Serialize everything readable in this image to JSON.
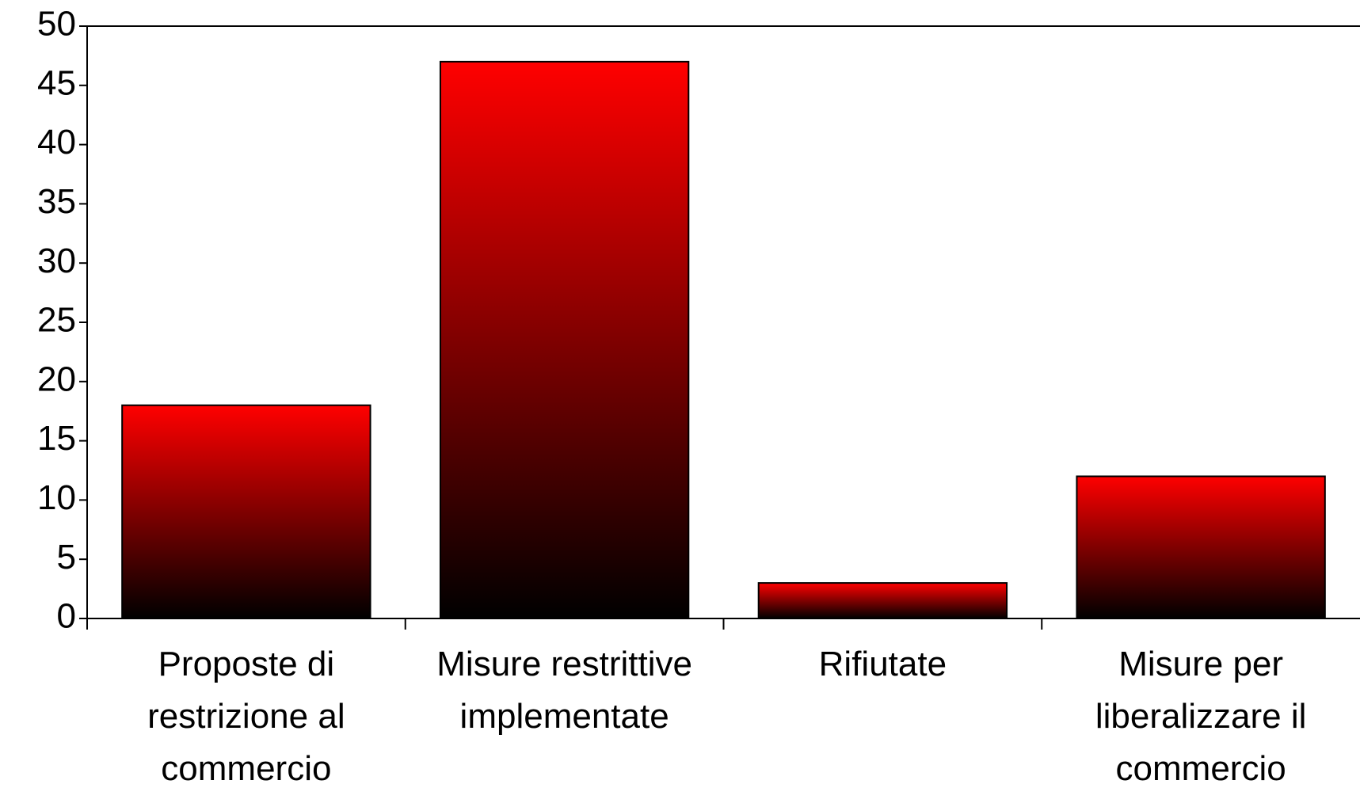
{
  "chart_data": {
    "type": "bar",
    "categories": [
      "Proposte di restrizione al commercio",
      "Misure restrittive implementate",
      "Rifiutate",
      "Misure per liberalizzare il commercio"
    ],
    "values": [
      18,
      47,
      3,
      12
    ],
    "color": "#ff0000",
    "gradient_end": "#000000",
    "ylim": [
      0,
      50
    ],
    "yticks": [
      0,
      5,
      10,
      15,
      20,
      25,
      30,
      35,
      40,
      45,
      50
    ]
  }
}
